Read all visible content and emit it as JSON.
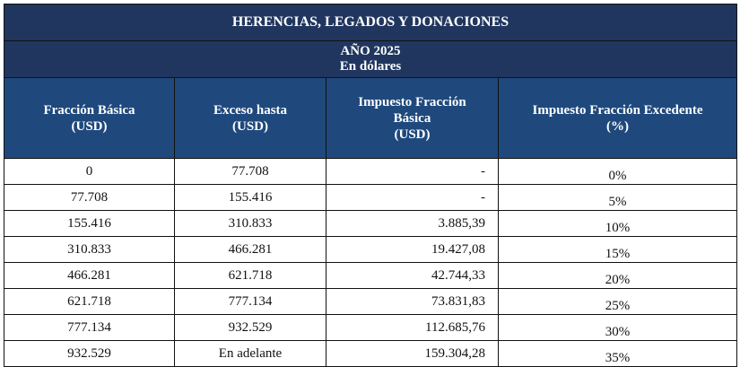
{
  "title": "HERENCIAS, LEGADOS Y DONACIONES",
  "subtitle_year": "AÑO 2025",
  "subtitle_unit": "En dólares",
  "headers": [
    [
      "Fracción Básica",
      "(USD)"
    ],
    [
      "Exceso hasta",
      "(USD)"
    ],
    [
      "Impuesto Fracción",
      "Básica",
      "(USD)"
    ],
    [
      "Impuesto Fracción Excedente",
      "(%)"
    ]
  ],
  "rows": [
    [
      "0",
      "77.708",
      "-",
      "0%"
    ],
    [
      "77.708",
      "155.416",
      "-",
      "5%"
    ],
    [
      "155.416",
      "310.833",
      "3.885,39",
      "10%"
    ],
    [
      "310.833",
      "466.281",
      "19.427,08",
      "15%"
    ],
    [
      "466.281",
      "621.718",
      "42.744,33",
      "20%"
    ],
    [
      "621.718",
      "777.134",
      "73.831,83",
      "25%"
    ],
    [
      "777.134",
      "932.529",
      "112.685,76",
      "30%"
    ],
    [
      "932.529",
      "En adelante",
      "159.304,28",
      "35%"
    ]
  ],
  "colors": {
    "title_bg": "#21365f",
    "header_bg": "#1f497d"
  }
}
